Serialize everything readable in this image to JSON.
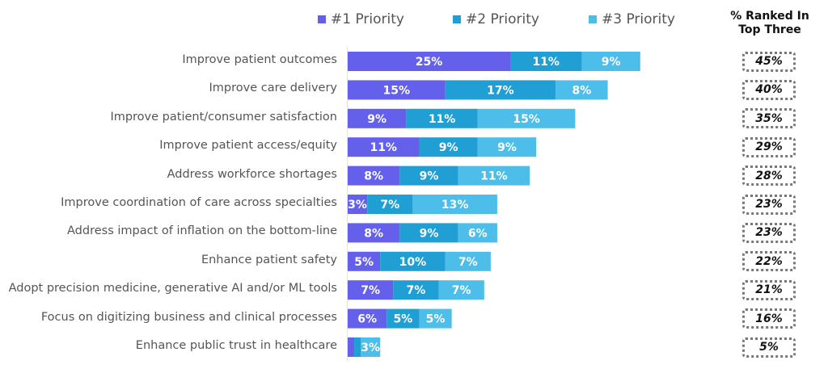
{
  "chart_data": {
    "type": "bar",
    "orientation": "horizontal",
    "stacked": true,
    "title": "",
    "xlabel": "",
    "ylabel": "",
    "legend_position": "top",
    "grid": false,
    "xlim": [
      0,
      45
    ],
    "categories": [
      "Improve patient outcomes",
      "Improve care delivery",
      "Improve patient/consumer satisfaction",
      "Improve patient access/equity",
      "Address workforce shortages",
      "Improve coordination of care across specialties",
      "Address impact of inflation on the bottom-line",
      "Enhance patient safety",
      "Adopt precision medicine, generative AI and/or ML tools",
      "Focus on digitizing business and clinical processes",
      "Enhance public trust in healthcare"
    ],
    "series": [
      {
        "name": "#1 Priority",
        "color": "#6460ec",
        "values": [
          25,
          15,
          9,
          11,
          8,
          3,
          8,
          5,
          7,
          6,
          1
        ],
        "labels": [
          "25%",
          "15%",
          "9%",
          "11%",
          "8%",
          "3%",
          "8%",
          "5%",
          "7%",
          "6%",
          ""
        ]
      },
      {
        "name": "#2 Priority",
        "color": "#1f9fd4",
        "values": [
          11,
          17,
          11,
          9,
          9,
          7,
          9,
          10,
          7,
          5,
          1
        ],
        "labels": [
          "11%",
          "17%",
          "11%",
          "9%",
          "9%",
          "7%",
          "9%",
          "10%",
          "7%",
          "5%",
          ""
        ]
      },
      {
        "name": "#3 Priority",
        "color": "#4dbde9",
        "values": [
          9,
          8,
          15,
          9,
          11,
          13,
          6,
          7,
          7,
          5,
          3
        ],
        "labels": [
          "9%",
          "8%",
          "15%",
          "9%",
          "11%",
          "13%",
          "6%",
          "7%",
          "7%",
          "5%",
          "3%"
        ]
      }
    ],
    "totals_title": "% Ranked In Top Three",
    "totals": [
      "45%",
      "40%",
      "35%",
      "29%",
      "28%",
      "23%",
      "23%",
      "22%",
      "21%",
      "16%",
      "5%"
    ]
  },
  "legend": {
    "items": [
      {
        "label": "#1 Priority",
        "color": "#6460ec"
      },
      {
        "label": "#2 Priority",
        "color": "#1f9fd4"
      },
      {
        "label": "#3 Priority",
        "color": "#4dbde9"
      }
    ]
  },
  "totals_header": {
    "line1": "% Ranked In",
    "line2": "Top Three"
  }
}
